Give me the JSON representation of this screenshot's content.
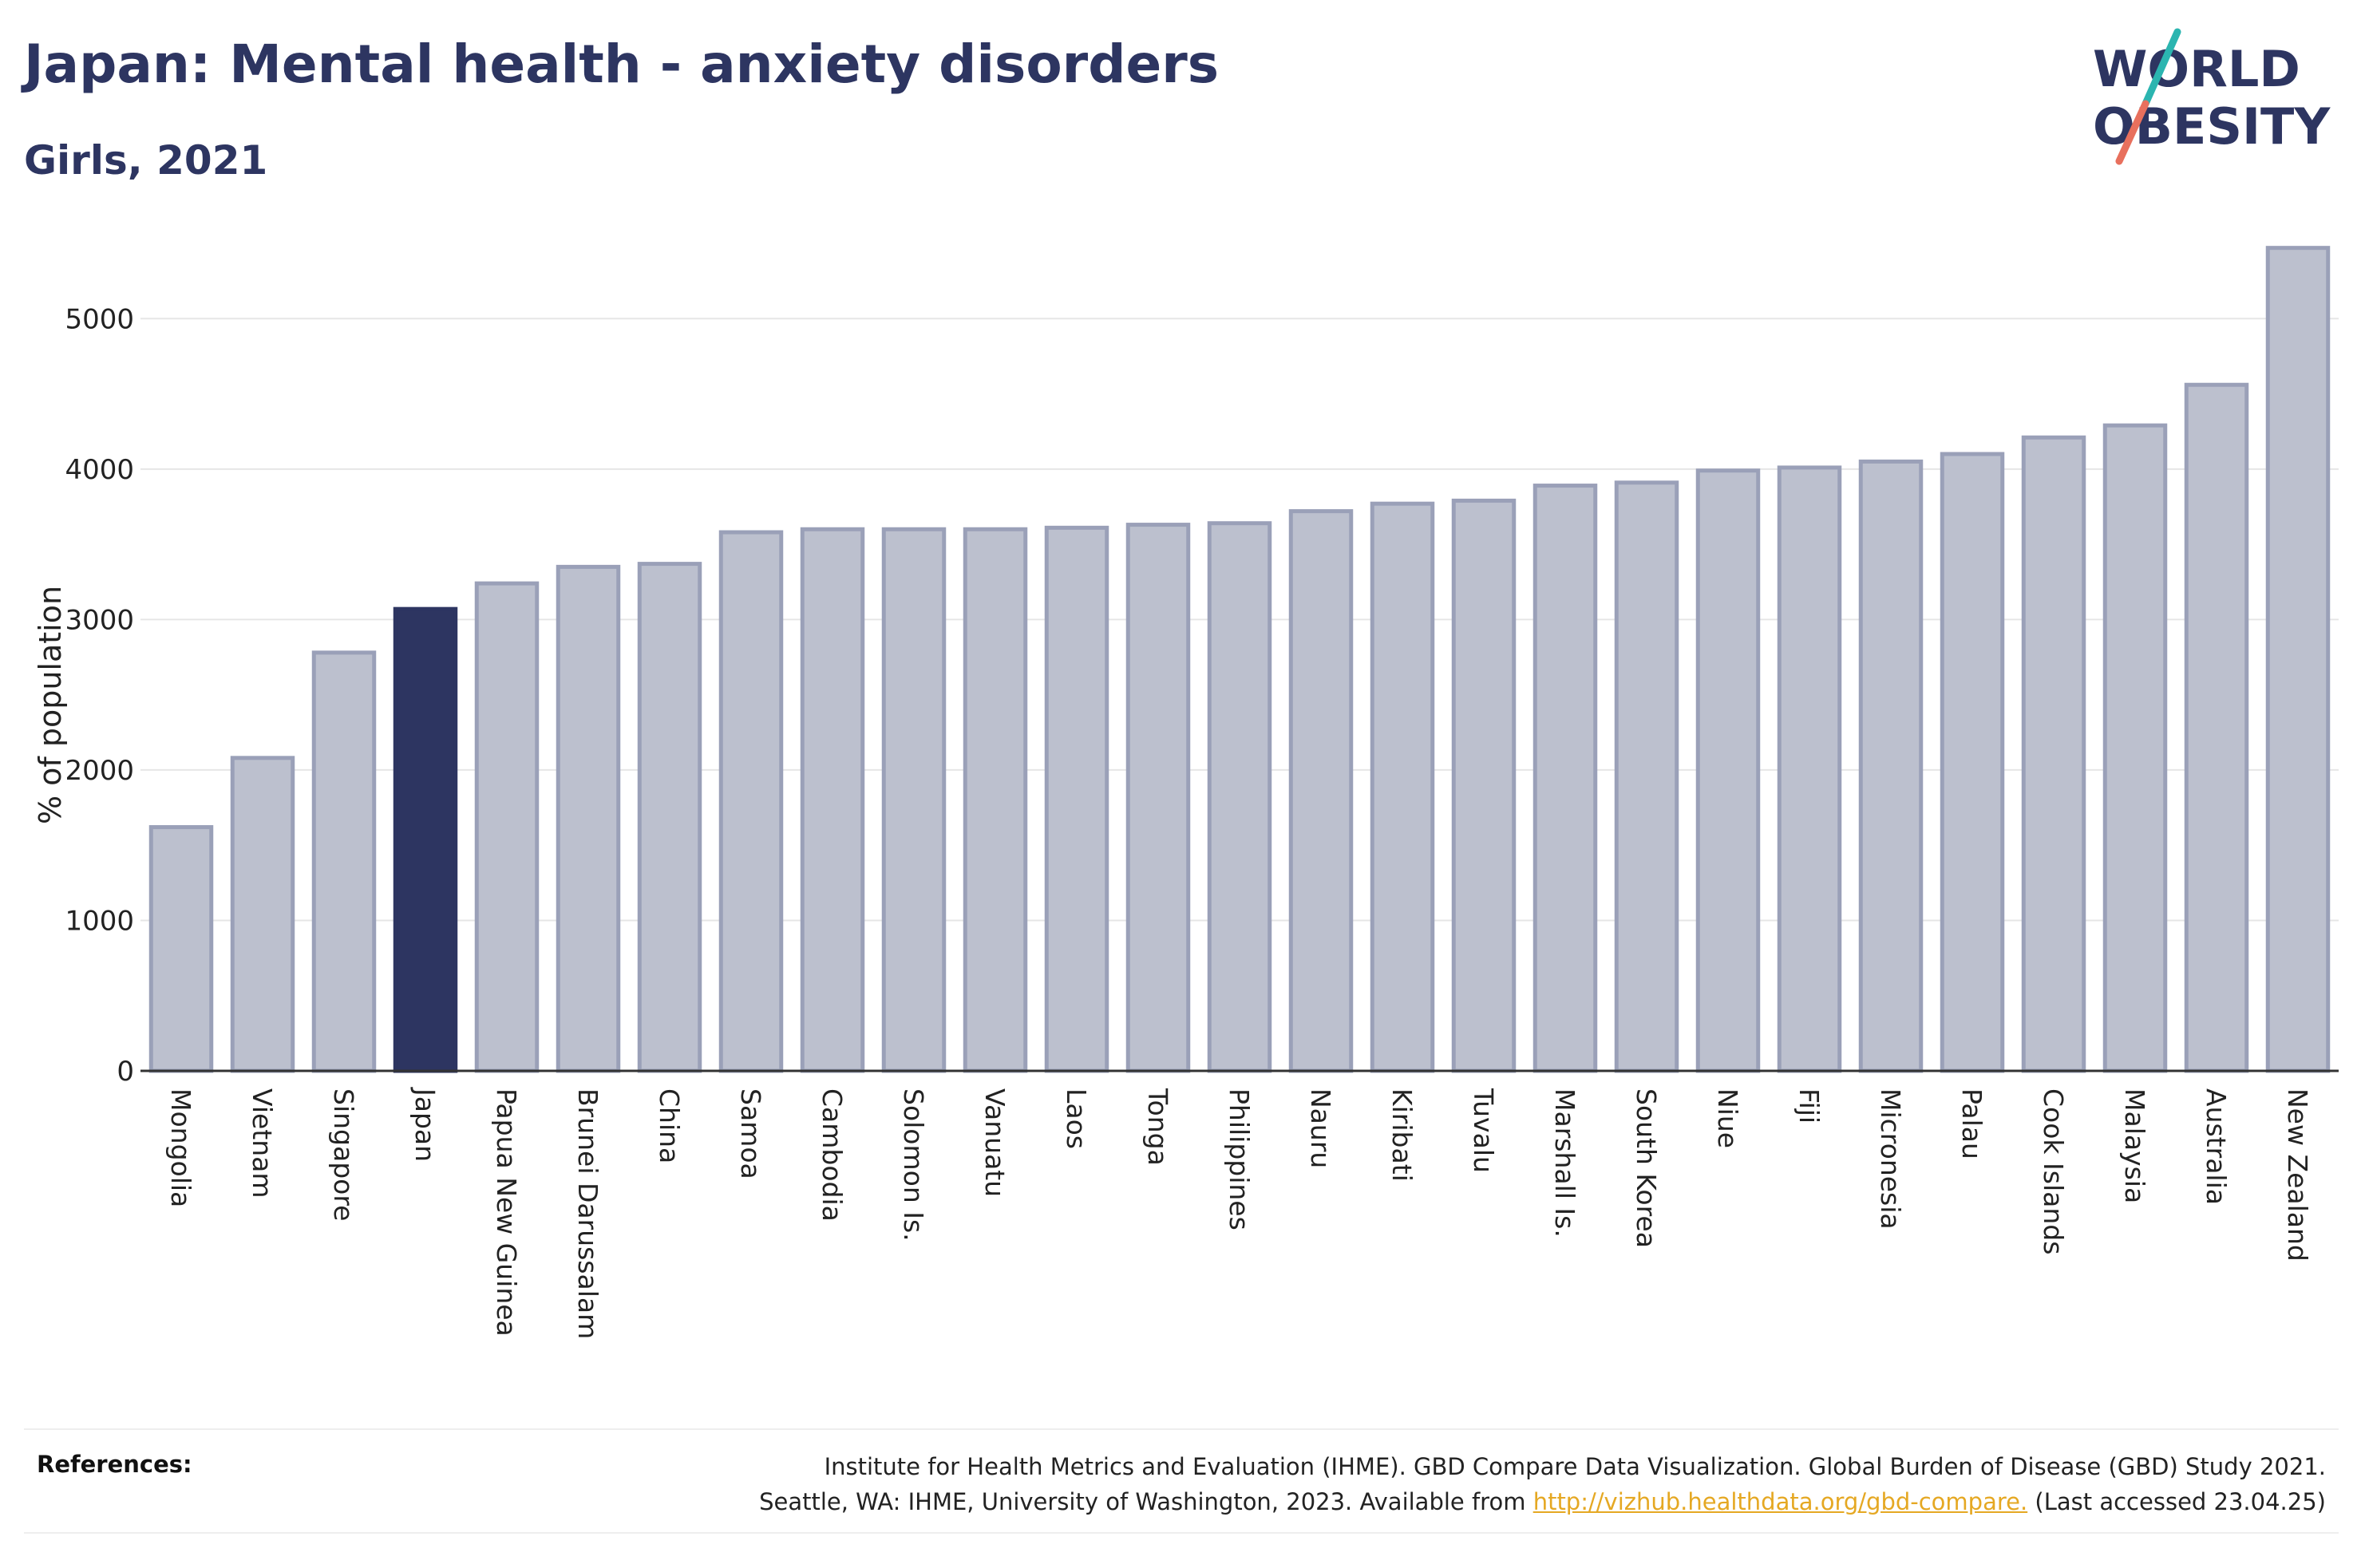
{
  "header": {
    "title": "Japan: Mental health - anxiety disorders",
    "subtitle": "Girls, 2021"
  },
  "logo": {
    "line1": "WORLD",
    "line2": "OBESITY",
    "text_color": "#2d3561",
    "slash_color_top": "#2bb5b0",
    "slash_color_bottom": "#e8705d"
  },
  "colors": {
    "bar": "#bcc0ce",
    "bar_outline": "#9aa0b8",
    "highlight": "#2d3561"
  },
  "chart_data": {
    "type": "bar",
    "title": "Japan: Mental health - anxiety disorders",
    "subtitle": "Girls, 2021",
    "xlabel": "",
    "ylabel": "% of population",
    "ylim": [
      0,
      5500
    ],
    "yticks": [
      0,
      1000,
      2000,
      3000,
      4000,
      5000
    ],
    "grid": true,
    "highlight": "Japan",
    "categories": [
      "Mongolia",
      "Vietnam",
      "Singapore",
      "Japan",
      "Papua New Guinea",
      "Brunei Darussalam",
      "China",
      "Samoa",
      "Cambodia",
      "Solomon Is.",
      "Vanuatu",
      "Laos",
      "Tonga",
      "Philippines",
      "Nauru",
      "Kiribati",
      "Tuvalu",
      "Marshall Is.",
      "South Korea",
      "Niue",
      "Fiji",
      "Micronesia",
      "Palau",
      "Cook Islands",
      "Malaysia",
      "Australia",
      "New Zealand"
    ],
    "values": [
      1620,
      2080,
      2780,
      3070,
      3240,
      3350,
      3370,
      3580,
      3600,
      3600,
      3600,
      3610,
      3630,
      3640,
      3720,
      3770,
      3790,
      3890,
      3910,
      3990,
      4010,
      4050,
      4100,
      4210,
      4290,
      4560,
      5470
    ]
  },
  "references": {
    "label": "References:",
    "line1": "Institute for Health Metrics and Evaluation (IHME). GBD Compare Data Visualization. Global Burden of Disease (GBD) Study 2021.",
    "line2_prefix": "Seattle, WA: IHME, University of Washington, 2023. Available from ",
    "link": "http://vizhub.healthdata.org/gbd-compare.",
    "line2_suffix": " (Last accessed 23.04.25)"
  }
}
